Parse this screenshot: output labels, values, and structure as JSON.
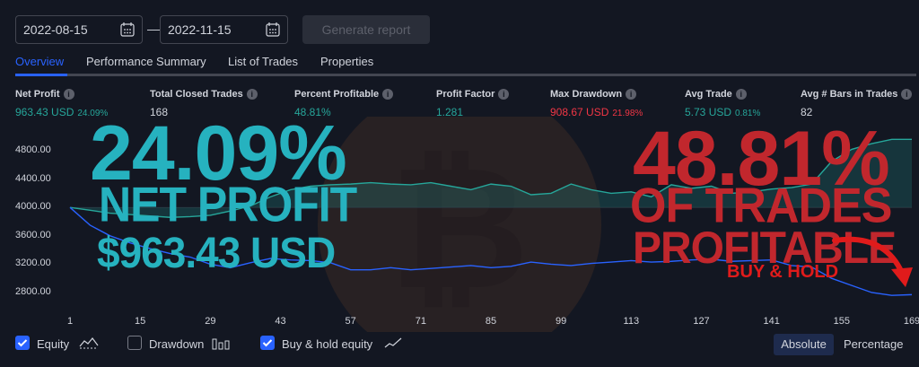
{
  "toolbar": {
    "start_date": "2022-08-15",
    "separator": "—",
    "end_date": "2022-11-15",
    "generate_label": "Generate report"
  },
  "tabs": [
    {
      "label": "Overview",
      "active": true
    },
    {
      "label": "Performance Summary",
      "active": false
    },
    {
      "label": "List of Trades",
      "active": false
    },
    {
      "label": "Properties",
      "active": false
    }
  ],
  "metrics": [
    {
      "label": "Net Profit",
      "value": "963.43 USD",
      "sub": "24.09%",
      "color": "#26a69a"
    },
    {
      "label": "Total Closed Trades",
      "value": "168",
      "sub": "",
      "color": "#d1d4dc"
    },
    {
      "label": "Percent Profitable",
      "value": "48.81%",
      "sub": "",
      "color": "#26a69a"
    },
    {
      "label": "Profit Factor",
      "value": "1.281",
      "sub": "",
      "color": "#26a69a"
    },
    {
      "label": "Max Drawdown",
      "value": "908.67 USD",
      "sub": "21.98%",
      "color": "#f23645"
    },
    {
      "label": "Avg Trade",
      "value": "5.73 USD",
      "sub": "0.81%",
      "color": "#26a69a"
    },
    {
      "label": "Avg # Bars in Trades",
      "value": "82",
      "sub": "",
      "color": "#d1d4dc"
    }
  ],
  "overlay": {
    "left_big": "24.09%",
    "left_mid": "NET PROFIT",
    "left_small": "$963.43 USD",
    "right_big": "48.81%",
    "right_mid": "OF TRADES",
    "right_small": "PROFITABLE",
    "buy_hold": "BUY & HOLD"
  },
  "legend": {
    "equity": {
      "label": "Equity",
      "checked": true
    },
    "drawdown": {
      "label": "Drawdown",
      "checked": false
    },
    "buyhold": {
      "label": "Buy & hold equity",
      "checked": true
    },
    "absolute": "Absolute",
    "percentage": "Percentage"
  },
  "chart_data": {
    "type": "line",
    "ylim": [
      2650,
      5100
    ],
    "xlim": [
      1,
      169
    ],
    "yticks": [
      "4800.00",
      "4400.00",
      "4000.00",
      "3600.00",
      "3200.00",
      "2800.00"
    ],
    "ytick_values": [
      4800,
      4400,
      4000,
      3600,
      3200,
      2800
    ],
    "xticks": [
      "1",
      "15",
      "29",
      "43",
      "57",
      "71",
      "85",
      "99",
      "113",
      "127",
      "141",
      "155",
      "169"
    ],
    "xtick_values": [
      1,
      15,
      29,
      43,
      57,
      71,
      85,
      99,
      113,
      127,
      141,
      155,
      169
    ],
    "baseline": 4000,
    "series": [
      {
        "name": "Equity",
        "color": "#26a69a",
        "x": [
          1,
          5,
          9,
          13,
          17,
          21,
          25,
          29,
          33,
          37,
          41,
          45,
          49,
          53,
          57,
          61,
          65,
          69,
          73,
          77,
          81,
          85,
          89,
          93,
          97,
          101,
          105,
          109,
          113,
          117,
          121,
          125,
          129,
          133,
          137,
          141,
          145,
          149,
          153,
          157,
          161,
          165,
          169
        ],
        "y": [
          4000,
          3960,
          3920,
          3900,
          3880,
          3860,
          3870,
          3890,
          3950,
          4020,
          4150,
          4250,
          4300,
          4320,
          4330,
          4350,
          4330,
          4320,
          4350,
          4300,
          4250,
          4330,
          4300,
          4180,
          4200,
          4330,
          4250,
          4200,
          4220,
          4150,
          4320,
          4270,
          4300,
          4200,
          4220,
          4260,
          4280,
          4330,
          4650,
          4820,
          4900,
          4960,
          4960
        ]
      },
      {
        "name": "Buy & hold equity",
        "color": "#2962ff",
        "x": [
          1,
          5,
          9,
          13,
          17,
          21,
          25,
          29,
          33,
          37,
          41,
          45,
          49,
          53,
          57,
          61,
          65,
          69,
          73,
          77,
          81,
          85,
          89,
          93,
          97,
          101,
          105,
          109,
          113,
          117,
          121,
          125,
          129,
          133,
          137,
          141,
          145,
          149,
          153,
          157,
          161,
          165,
          169
        ],
        "y": [
          4000,
          3750,
          3600,
          3500,
          3420,
          3350,
          3300,
          3200,
          3150,
          3220,
          3280,
          3260,
          3250,
          3220,
          3120,
          3120,
          3150,
          3120,
          3140,
          3160,
          3180,
          3150,
          3170,
          3230,
          3200,
          3180,
          3210,
          3230,
          3250,
          3230,
          3240,
          3260,
          3270,
          3240,
          3250,
          3260,
          3180,
          3160,
          3000,
          2900,
          2800,
          2760,
          2770
        ]
      }
    ]
  }
}
